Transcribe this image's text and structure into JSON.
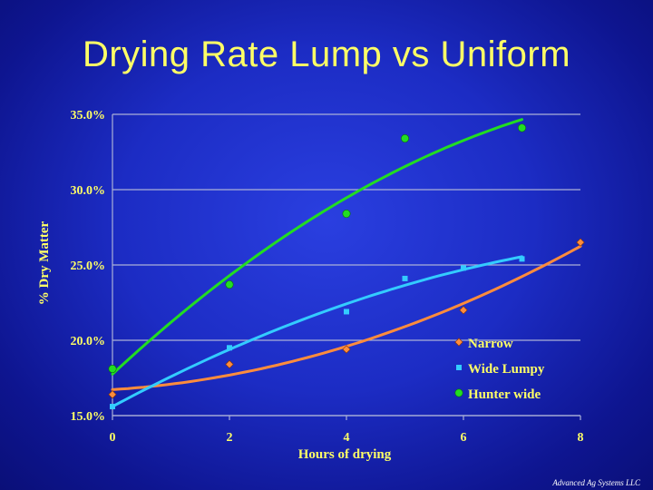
{
  "footer": "Advanced Ag Systems LLC",
  "chart_data": {
    "type": "scatter",
    "title": "Drying Rate Lump vs Uniform",
    "xlabel": "Hours of drying",
    "ylabel": "% Dry Matter",
    "xlim": [
      0,
      8
    ],
    "ylim": [
      0.15,
      0.35
    ],
    "x_ticks": [
      0,
      2,
      4,
      6,
      8
    ],
    "x_tick_labels": [
      "0",
      "2",
      "4",
      "6",
      "8"
    ],
    "y_ticks": [
      0.15,
      0.2,
      0.25,
      0.3,
      0.35
    ],
    "y_tick_labels": [
      "15.0%",
      "20.0%",
      "25.0%",
      "30.0%",
      "35.0%"
    ],
    "grid": "horizontal",
    "legend_position": "bottom-right",
    "trendlines": "polynomial",
    "series": [
      {
        "name": "Narrow",
        "marker": "diamond",
        "color": "#ff8c3c",
        "x": [
          0,
          2,
          4,
          6,
          8
        ],
        "y": [
          0.164,
          0.184,
          0.194,
          0.22,
          0.265
        ]
      },
      {
        "name": "Wide Lumpy",
        "marker": "square",
        "color": "#33ccff",
        "x": [
          0,
          2,
          4,
          5,
          6,
          7
        ],
        "y": [
          0.156,
          0.195,
          0.219,
          0.241,
          0.248,
          0.254
        ]
      },
      {
        "name": "Hunter wide",
        "marker": "circle",
        "color": "#22dd22",
        "x": [
          0,
          2,
          4,
          5,
          7
        ],
        "y": [
          0.181,
          0.237,
          0.284,
          0.334,
          0.341
        ]
      }
    ]
  }
}
